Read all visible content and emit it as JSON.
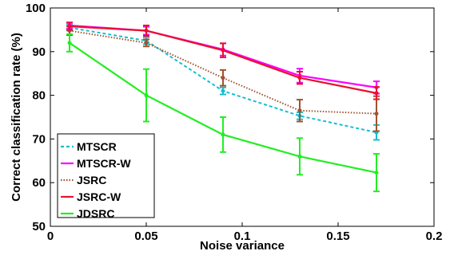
{
  "chart_data": {
    "type": "line",
    "title": "",
    "xlabel": "Noise variance",
    "ylabel": "Correct classification rate (%)",
    "xlim": [
      0,
      0.2
    ],
    "ylim": [
      50,
      100
    ],
    "xticks": [
      "0",
      "0.05",
      "0.1",
      "0.15",
      "0.2"
    ],
    "yticks": [
      "50",
      "60",
      "70",
      "80",
      "90",
      "100"
    ],
    "grid": false,
    "legend_position": "bottom-left",
    "x": [
      0.01,
      0.05,
      0.09,
      0.13,
      0.17
    ],
    "series": [
      {
        "name": "MTSCR",
        "color": "#17becf",
        "dash": "dotted",
        "values": [
          95.5,
          92.5,
          81.0,
          75.3,
          71.5
        ],
        "err": [
          0.7,
          0.8,
          0.8,
          0.8,
          1.7
        ]
      },
      {
        "name": "MTSCR-W",
        "color": "#ff00ff",
        "dash": "solid",
        "values": [
          96.0,
          94.8,
          90.5,
          84.5,
          81.8
        ],
        "err": [
          0.7,
          0.9,
          1.4,
          1.6,
          1.4
        ]
      },
      {
        "name": "JSRC",
        "color": "#a0522d",
        "dash": "dotted-fine",
        "values": [
          94.8,
          92.0,
          84.0,
          76.5,
          75.8
        ],
        "err": [
          1.0,
          0.8,
          1.8,
          2.5,
          4.0
        ]
      },
      {
        "name": "JSRC-W",
        "color": "#e8112d",
        "dash": "solid",
        "values": [
          95.8,
          94.8,
          90.3,
          84.0,
          80.5
        ],
        "err": [
          0.8,
          1.2,
          1.6,
          1.4,
          1.4
        ]
      },
      {
        "name": "JDSRC",
        "color": "#22ee22",
        "dash": "solid",
        "values": [
          92.0,
          80.0,
          71.0,
          66.0,
          62.3
        ],
        "err": [
          2.0,
          6.0,
          4.0,
          4.2,
          4.3
        ]
      }
    ]
  }
}
